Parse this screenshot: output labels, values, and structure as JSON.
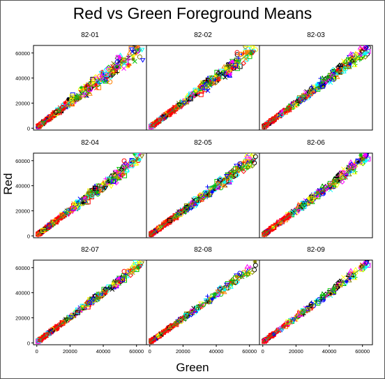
{
  "chart_data": {
    "type": "scatter",
    "title": "Red vs Green Foreground Means",
    "xlabel": "Green",
    "ylabel": "Red",
    "xlim": [
      -2000,
      66000
    ],
    "ylim": [
      -1500,
      66000
    ],
    "x_ticks": [
      0,
      20000,
      40000,
      60000
    ],
    "y_ticks": [
      0,
      20000,
      40000,
      60000
    ],
    "x_tick_labels": [
      "0",
      "20000",
      "40000",
      "60000"
    ],
    "y_tick_labels": [
      "0",
      "20000",
      "40000",
      "60000"
    ],
    "grid": false,
    "legend": "none",
    "marker_colors": [
      "#ff0000",
      "#00ffff",
      "#0000ff",
      "#ff00ff",
      "#00c000",
      "#ffff00",
      "#ff8000",
      "#000000",
      "#808000"
    ],
    "marker_shapes": [
      "x",
      "star",
      "plus",
      "square",
      "circle",
      "triangle-down",
      "triangle-up",
      "diamond"
    ],
    "panels": [
      {
        "title": "82-01",
        "trend": [
          [
            0,
            500
          ],
          [
            62000,
            63000
          ]
        ],
        "spread": 0.2,
        "density": 1.0
      },
      {
        "title": "82-02",
        "trend": [
          [
            0,
            500
          ],
          [
            62000,
            62000
          ]
        ],
        "spread": 0.16,
        "density": 1.0
      },
      {
        "title": "82-03",
        "trend": [
          [
            0,
            500
          ],
          [
            62000,
            62000
          ]
        ],
        "spread": 0.14,
        "density": 0.9
      },
      {
        "title": "82-04",
        "trend": [
          [
            0,
            500
          ],
          [
            62000,
            62000
          ]
        ],
        "spread": 0.15,
        "density": 0.85
      },
      {
        "title": "82-05",
        "trend": [
          [
            0,
            500
          ],
          [
            62000,
            61000
          ]
        ],
        "spread": 0.14,
        "density": 0.9
      },
      {
        "title": "82-06",
        "trend": [
          [
            0,
            500
          ],
          [
            62000,
            62000
          ]
        ],
        "spread": 0.13,
        "density": 0.8
      },
      {
        "title": "82-07",
        "trend": [
          [
            0,
            500
          ],
          [
            62000,
            62000
          ]
        ],
        "spread": 0.09,
        "density": 0.8
      },
      {
        "title": "82-08",
        "trend": [
          [
            0,
            500
          ],
          [
            62000,
            60000
          ]
        ],
        "spread": 0.1,
        "density": 0.55
      },
      {
        "title": "82-09",
        "trend": [
          [
            0,
            500
          ],
          [
            62000,
            62000
          ]
        ],
        "spread": 0.1,
        "density": 0.5
      }
    ]
  }
}
